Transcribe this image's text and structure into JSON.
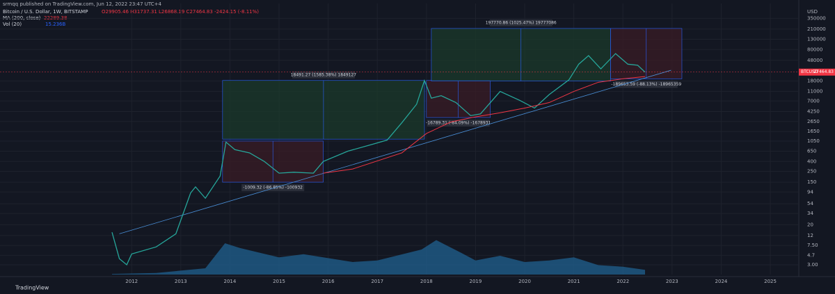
{
  "header": {
    "published": "srmqq published on TradingView.com, Jun 12, 2022 23:47 UTC+4",
    "symbol": "Bitcoin / U.S. Dollar, 1W, BITSTAMP",
    "ohlc": "O29905.46 H31737.31 L26868.19 C27464.83 -2424.15 (-8.11%)",
    "ma": "MA (200, close)",
    "ma_value": "22289.38",
    "vol": "Vol (20)",
    "vol_value": "15.236B"
  },
  "footer": {
    "brand": "TradingView"
  },
  "chart_data": {
    "type": "line",
    "log_y": true,
    "axis_unit": "USD",
    "xlim": [
      2009.32,
      2025.58
    ],
    "ylim": [
      1.89,
      708000
    ],
    "xticks": [
      2012,
      2013,
      2014,
      2015,
      2016,
      2017,
      2018,
      2019,
      2020,
      2021,
      2022,
      2023,
      2024,
      2025
    ],
    "yticks": [
      350000,
      210000,
      130000,
      80000,
      48000,
      18000,
      11000,
      7000,
      4250,
      2650,
      1650,
      1050,
      650,
      400,
      250,
      150,
      94,
      54,
      34,
      20,
      12,
      {
        "value": 7.5,
        "label": "7.50"
      },
      4.7,
      {
        "value": 3,
        "label": "3.00"
      }
    ],
    "series": [
      {
        "name": "BTCUSD",
        "color": "#26a69a",
        "x": [
          2011.6,
          2011.75,
          2011.9,
          2012.0,
          2012.5,
          2012.9,
          2013.2,
          2013.3,
          2013.5,
          2013.8,
          2013.92,
          2014.1,
          2014.4,
          2014.7,
          2015.0,
          2015.3,
          2015.7,
          2015.9,
          2016.4,
          2016.9,
          2017.2,
          2017.5,
          2017.8,
          2017.96,
          2018.1,
          2018.3,
          2018.6,
          2018.9,
          2019.1,
          2019.5,
          2019.9,
          2020.2,
          2020.5,
          2020.9,
          2021.1,
          2021.3,
          2021.55,
          2021.85,
          2022.1,
          2022.3,
          2022.45
        ],
        "values": [
          14,
          4,
          3,
          5,
          7,
          13,
          90,
          120,
          70,
          200,
          1000,
          700,
          600,
          400,
          230,
          240,
          230,
          400,
          650,
          900,
          1100,
          2500,
          6000,
          18500,
          8000,
          9000,
          6500,
          3500,
          3800,
          11000,
          7200,
          5000,
          9500,
          19000,
          40000,
          60000,
          32000,
          66000,
          40000,
          38000,
          27464.83
        ]
      },
      {
        "name": "MA (200, close)",
        "color": "#f23645",
        "x": [
          2015.9,
          2016.5,
          2017.5,
          2018.0,
          2018.5,
          2019.0,
          2019.5,
          2020.0,
          2020.5,
          2021.0,
          2021.5,
          2022.0,
          2022.45
        ],
        "values": [
          230,
          280,
          600,
          1500,
          2600,
          3300,
          4000,
          5000,
          6500,
          11000,
          17000,
          20000,
          22289.38
        ]
      }
    ],
    "volume": {
      "color": "#1f5c8a",
      "ylim": [
        0,
        100
      ],
      "x": [
        2011.6,
        2012.5,
        2013.5,
        2013.9,
        2014.2,
        2015.0,
        2015.5,
        2016.5,
        2017.0,
        2017.9,
        2018.2,
        2018.7,
        2019.0,
        2019.5,
        2020.0,
        2020.5,
        2021.0,
        2021.5,
        2022.0,
        2022.45
      ],
      "values": [
        2,
        5,
        20,
        100,
        85,
        55,
        65,
        40,
        45,
        80,
        110,
        70,
        45,
        60,
        40,
        45,
        55,
        30,
        25,
        15
      ]
    },
    "trendline": {
      "color": "#4a90d9",
      "x": [
        2011.75,
        2022.98
      ],
      "values": [
        13,
        30000
      ]
    },
    "boxes": [
      {
        "color": "green",
        "x": [
          2013.85,
          2017.96
        ],
        "y": [
          1150,
          18500
        ],
        "label": "18491.27 (1585.38%) 1849127"
      },
      {
        "color": "red",
        "x": [
          2013.85,
          2015.9
        ],
        "y": [
          150,
          1050
        ],
        "label": "-1009.32 (-86.85%) -100932"
      },
      {
        "color": "red",
        "x": [
          2018.0,
          2019.3
        ],
        "y": [
          3200,
          18500
        ],
        "label": "-16789.31 (-84.09%) -1678931"
      },
      {
        "color": "green",
        "x": [
          2018.1,
          2021.75
        ],
        "y": [
          18000,
          217000
        ],
        "label": "197770.86 (1025.47%) 19777086"
      },
      {
        "color": "red",
        "x": [
          2021.75,
          2023.2
        ],
        "y": [
          20000,
          217000
        ],
        "label": "-189653.59 (-88.13%) -18965359"
      }
    ]
  }
}
